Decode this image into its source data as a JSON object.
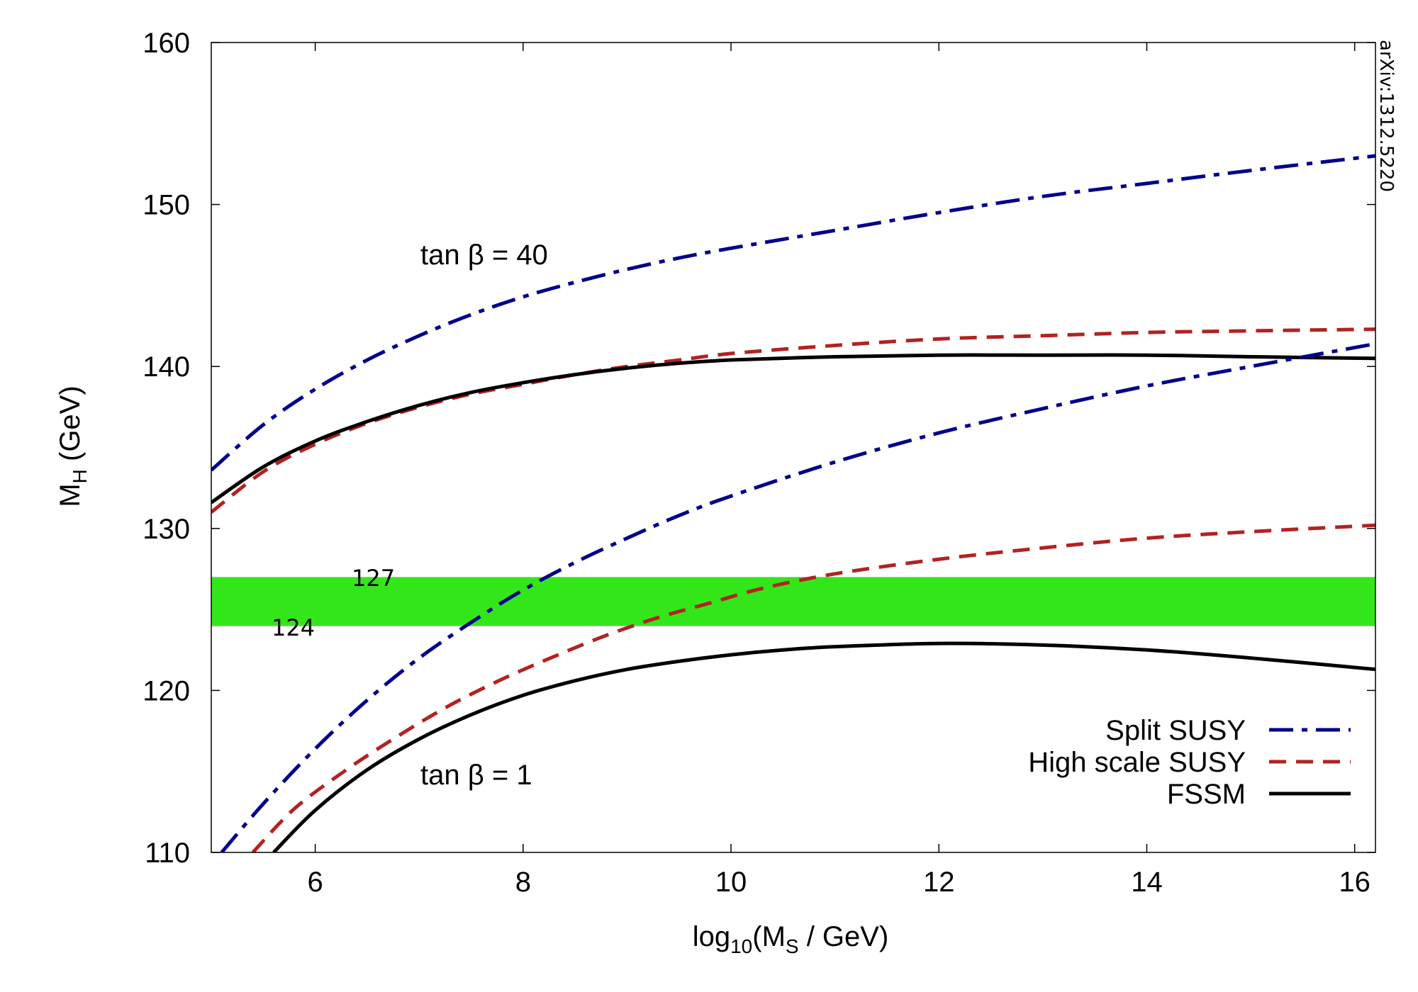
{
  "chart_data": {
    "type": "line",
    "xlabel": {
      "prefix": "log",
      "sub": "10",
      "mid": "(M",
      "sub2": "S",
      "suffix": " / GeV)"
    },
    "ylabel": {
      "prefix": "M",
      "sub": "H",
      "suffix": " (GeV)"
    },
    "xlim": [
      5,
      16.2
    ],
    "ylim": [
      110,
      160
    ],
    "xticks": [
      6,
      8,
      10,
      12,
      14,
      16
    ],
    "yticks": [
      110,
      120,
      130,
      140,
      150,
      160
    ],
    "grid": false,
    "legend_position": "bottom-right",
    "band": {
      "ymin": 124,
      "ymax": 127,
      "color": "#33e61a",
      "label_low": "124",
      "label_high": "127"
    },
    "annotations": [
      {
        "text": "tan β = 40",
        "x": 7.6,
        "y": 146
      },
      {
        "text": "tan β = 1",
        "x": 7.6,
        "y": 115
      }
    ],
    "series": [
      {
        "name": "Split SUSY",
        "color": "#00008b",
        "dash": "dashdot",
        "group": "tan β = 40",
        "x": [
          5,
          5.5,
          6,
          6.5,
          7,
          7.5,
          8,
          8.5,
          9,
          9.5,
          10,
          11,
          12,
          13,
          14,
          15,
          16.2
        ],
        "y": [
          133.6,
          136.4,
          138.6,
          140.4,
          141.9,
          143.2,
          144.3,
          145.2,
          146.0,
          146.7,
          147.3,
          148.4,
          149.5,
          150.5,
          151.3,
          152.1,
          153.0
        ]
      },
      {
        "name": "High scale SUSY",
        "color": "#b22222",
        "dash": "dashed",
        "group": "tan β = 40",
        "x": [
          5,
          5.5,
          6,
          6.5,
          7,
          7.5,
          8,
          8.5,
          9,
          9.5,
          10,
          11,
          12,
          13,
          14,
          15,
          16.2
        ],
        "y": [
          131.0,
          133.5,
          135.2,
          136.5,
          137.5,
          138.3,
          138.9,
          139.5,
          140.0,
          140.4,
          140.8,
          141.3,
          141.7,
          141.9,
          142.1,
          142.2,
          142.3
        ]
      },
      {
        "name": "FSSM",
        "color": "#000000",
        "dash": "solid",
        "group": "tan β = 40",
        "x": [
          5,
          5.5,
          6,
          6.5,
          7,
          7.5,
          8,
          8.5,
          9,
          9.5,
          10,
          11,
          12,
          13,
          14,
          15,
          16.2
        ],
        "y": [
          131.6,
          133.8,
          135.4,
          136.6,
          137.6,
          138.4,
          139.0,
          139.5,
          139.9,
          140.2,
          140.4,
          140.6,
          140.7,
          140.7,
          140.7,
          140.6,
          140.5
        ]
      },
      {
        "name": "Split SUSY",
        "color": "#00008b",
        "dash": "dashdot",
        "group": "tan β = 1",
        "x": [
          5.1,
          5.5,
          6,
          6.5,
          7,
          7.5,
          8,
          8.5,
          9,
          9.5,
          10,
          11,
          12,
          13,
          14,
          15,
          16.2
        ],
        "y": [
          110.0,
          113.0,
          116.4,
          119.4,
          122.0,
          124.2,
          126.2,
          127.9,
          129.4,
          130.8,
          132.0,
          134.1,
          135.9,
          137.4,
          138.8,
          140.0,
          141.4
        ]
      },
      {
        "name": "High scale SUSY",
        "color": "#b22222",
        "dash": "dashed",
        "group": "tan β = 1",
        "x": [
          5.4,
          5.8,
          6.3,
          6.8,
          7.3,
          7.8,
          8.3,
          8.8,
          9.3,
          9.8,
          10.3,
          11,
          12,
          13,
          14,
          15,
          16.2
        ],
        "y": [
          110.0,
          112.7,
          115.1,
          117.2,
          119.1,
          120.7,
          122.1,
          123.4,
          124.5,
          125.4,
          126.3,
          127.2,
          128.1,
          128.8,
          129.4,
          129.8,
          130.2
        ]
      },
      {
        "name": "FSSM",
        "color": "#000000",
        "dash": "solid",
        "group": "tan β = 1",
        "x": [
          5.6,
          6,
          6.5,
          7,
          7.5,
          8,
          8.5,
          9,
          9.5,
          10,
          10.5,
          11,
          12,
          13,
          14,
          15,
          16.2
        ],
        "y": [
          110.0,
          112.6,
          115.1,
          117.0,
          118.5,
          119.7,
          120.6,
          121.3,
          121.8,
          122.2,
          122.5,
          122.7,
          122.9,
          122.8,
          122.5,
          122.0,
          121.3
        ]
      }
    ],
    "legend": [
      {
        "label": "Split SUSY",
        "color": "#00008b",
        "dash": "dashdot"
      },
      {
        "label": "High scale SUSY",
        "color": "#b22222",
        "dash": "dashed"
      },
      {
        "label": "FSSM",
        "color": "#000000",
        "dash": "solid"
      }
    ],
    "stamp": "arXiv:1312.5220"
  }
}
